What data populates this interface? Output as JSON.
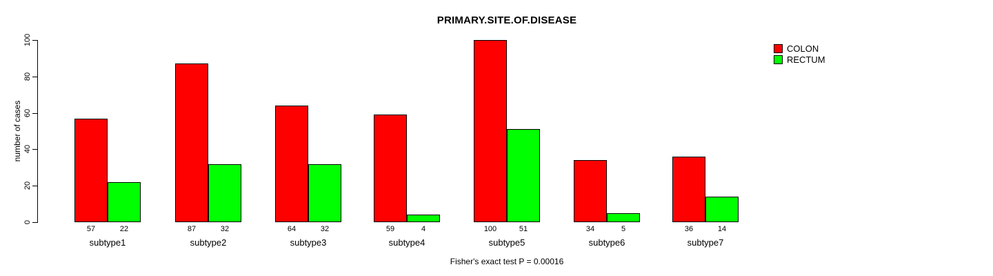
{
  "chart_data": {
    "type": "bar",
    "title": "PRIMARY.SITE.OF.DISEASE",
    "ylabel": "number of cases",
    "xlabel": "",
    "categories": [
      "subtype1",
      "subtype2",
      "subtype3",
      "subtype4",
      "subtype5",
      "subtype6",
      "subtype7"
    ],
    "series": [
      {
        "name": "COLON",
        "color": "#FF0000",
        "values": [
          57,
          87,
          64,
          59,
          100,
          34,
          36
        ]
      },
      {
        "name": "RECTUM",
        "color": "#00FF00",
        "values": [
          22,
          32,
          32,
          4,
          51,
          5,
          14
        ]
      }
    ],
    "yticks": [
      0,
      20,
      40,
      60,
      80,
      100
    ],
    "ylim": [
      0,
      100
    ],
    "grid": false,
    "legend_position": "top-right",
    "bar_value_labels_shown": true,
    "annotation": "Fisher's exact test P = 0.00016"
  }
}
